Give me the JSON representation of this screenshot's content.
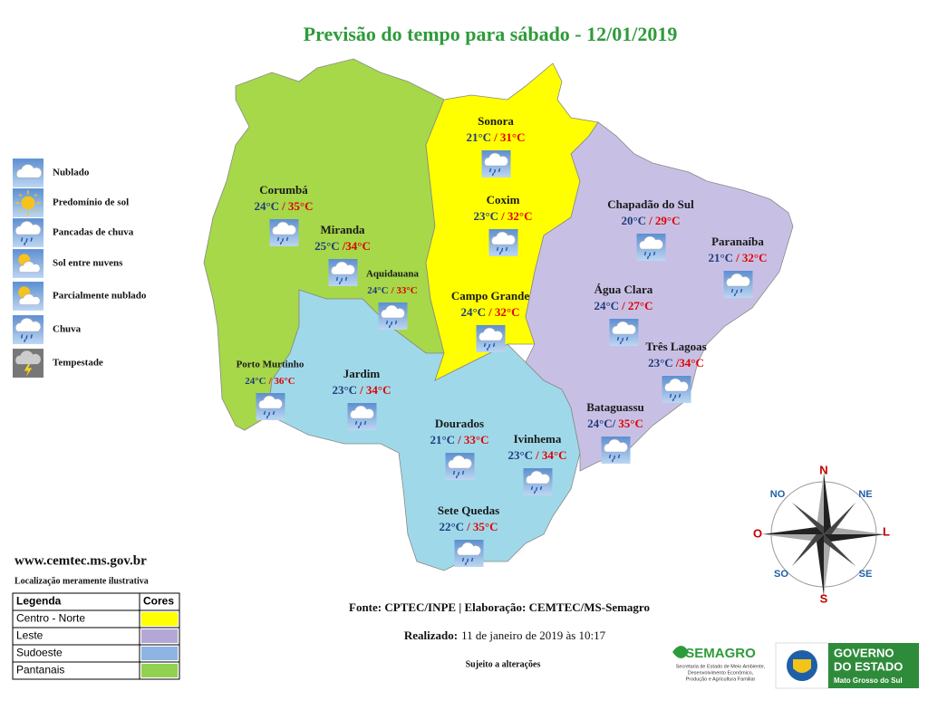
{
  "title": "Previsão do tempo para sábado - 12/01/2019",
  "icon_legend": [
    "Nublado",
    "Predomínio de sol",
    "Pancadas de chuva",
    "Sol entre nuvens",
    "Parcialmente nublado",
    "Chuva",
    "Tempestade"
  ],
  "cities": [
    {
      "name": "Sonora",
      "min": "21°C",
      "max": "/ 31°C"
    },
    {
      "name": "Coxim",
      "min": "23°C",
      "max": "/ 32°C"
    },
    {
      "name": "Campo Grande",
      "min": "24°C",
      "max": "/ 32°C"
    },
    {
      "name": "Corumbá",
      "min": "24°C",
      "max": "/ 35°C"
    },
    {
      "name": "Miranda",
      "min": "25°C",
      "max": "/34°C"
    },
    {
      "name": "Aquidauana",
      "min": "24°C",
      "max": "/ 33°C"
    },
    {
      "name": "Porto Murtinho",
      "min": "24°C",
      "max": "/ 36°C"
    },
    {
      "name": "Jardim",
      "min": "23°C",
      "max": "/ 34°C"
    },
    {
      "name": "Dourados",
      "min": "21°C",
      "max": "/ 33°C"
    },
    {
      "name": "Ivinhema",
      "min": "23°C",
      "max": "/ 34°C"
    },
    {
      "name": "Sete Quedas",
      "min": "22°C",
      "max": "/ 35°C"
    },
    {
      "name": "Chapadão do Sul",
      "min": "20°C",
      "max": "/ 29°C"
    },
    {
      "name": "Paranaíba",
      "min": "21°C",
      "max": "/ 32°C"
    },
    {
      "name": "Água Clara",
      "min": "24°C",
      "max": "/ 27°C"
    },
    {
      "name": "Três Lagoas",
      "min": "23°C",
      "max": "/34°C"
    },
    {
      "name": "Bataguassu",
      "min": "24°C/",
      "max": "35°C"
    }
  ],
  "website": "www.cemtec.ms.gov.br",
  "note": "Localização meramente ilustrativa",
  "region_legend": {
    "header": [
      "Legenda",
      "Cores"
    ],
    "rows": [
      {
        "label": "Centro - Norte",
        "color": "#ffff00"
      },
      {
        "label": "Leste",
        "color": "#b4a7d6"
      },
      {
        "label": "Sudoeste",
        "color": "#8db4e2"
      },
      {
        "label": "Pantanais",
        "color": "#92d050"
      }
    ]
  },
  "source": "Fonte: CPTEC/INPE | Elaboração: CEMTEC/MS-Semagro",
  "made": {
    "label": "Realizado:",
    "value": "11 de janeiro de 2019 às 10:17"
  },
  "disclaimer": "Sujeito a alterações",
  "compass": [
    "N",
    "NE",
    "L",
    "SE",
    "S",
    "SO",
    "O",
    "NO"
  ],
  "semagro": {
    "name": "SEMAGRO",
    "lines": [
      "Secretaria de Estado de Meio Ambiente,",
      "Desenvolvimento Econômico,",
      "Produção e Agricultura Familiar"
    ]
  },
  "government": {
    "lines": [
      "GOVERNO",
      "DO ESTADO"
    ],
    "state": "Mato Grosso do Sul"
  }
}
